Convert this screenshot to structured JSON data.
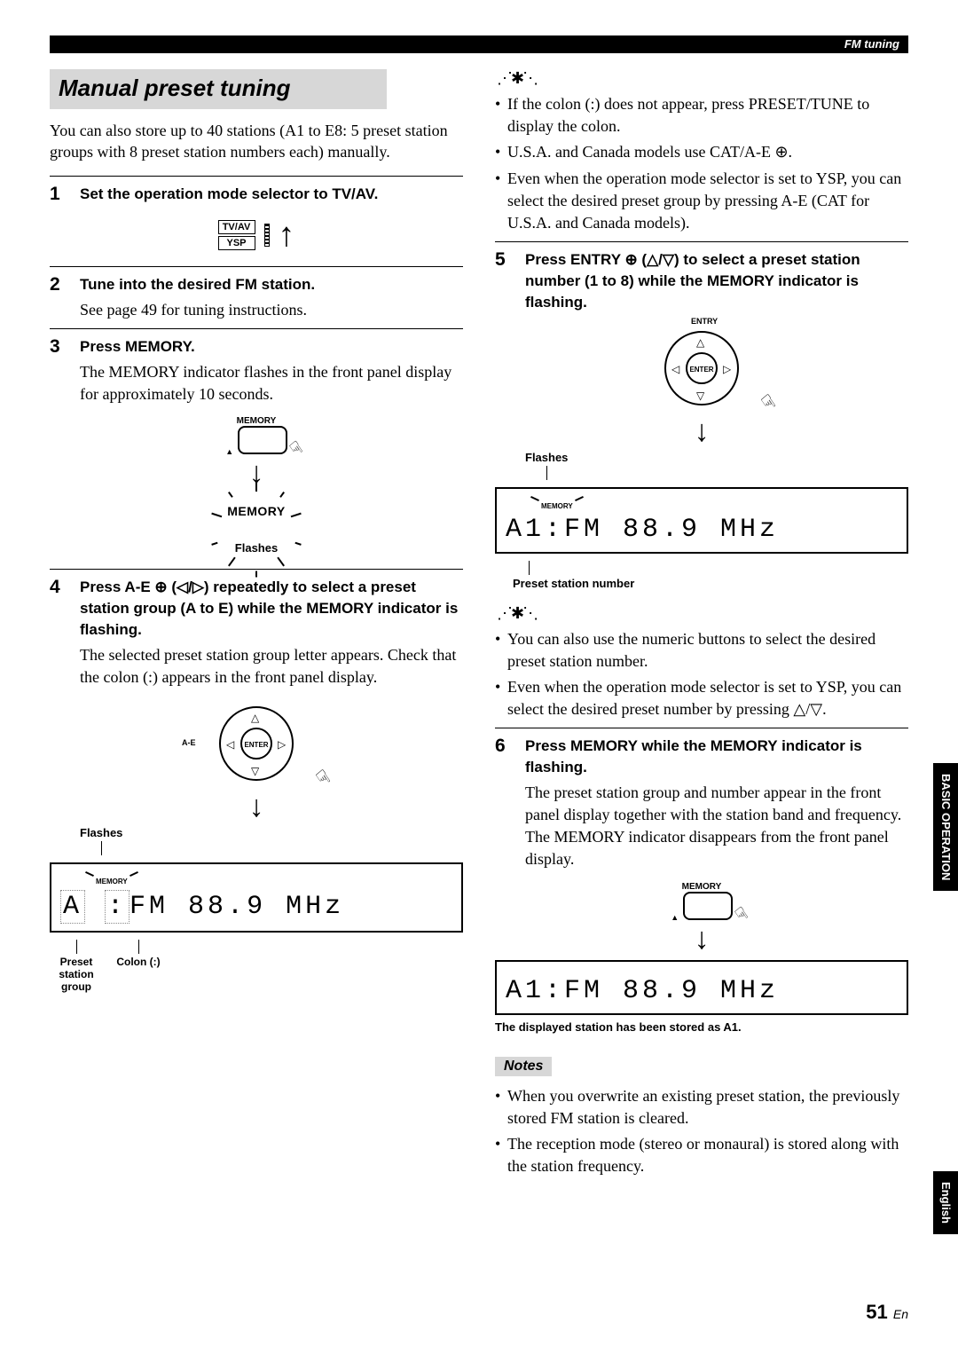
{
  "header_section": "FM tuning",
  "title": "Manual preset tuning",
  "intro": "You can also store up to 40 stations (A1 to E8: 5 preset station groups with 8 preset station numbers each) manually.",
  "side_tabs": {
    "basic": "BASIC OPERATION",
    "english": "English"
  },
  "page_number": "51",
  "page_lang": "En",
  "labels": {
    "flashes": "Flashes",
    "memory_btn": "MEMORY",
    "memory_word": "MEMORY",
    "tvav": "TV/AV",
    "ysp": "YSP",
    "enter": "ENTER",
    "ae_side": "A-E",
    "entry_top": "ENTRY",
    "preset_station_group": "Preset station group",
    "colon": "Colon (:)",
    "preset_station_number": "Preset station number",
    "stored_caption": "The displayed station has been stored as A1.",
    "notes": "Notes"
  },
  "lcd": {
    "step4_prefix": "A",
    "step4_colon": ":",
    "step4_freq": "FM 88.9 MHz",
    "step5_full": "A1:FM 88.9 MHz",
    "step6_full": "A1:FM 88.9 MHz"
  },
  "steps": {
    "s1_head": "Set the operation mode selector to TV/AV.",
    "s2_head": "Tune into the desired FM station.",
    "s2_body": "See page 49 for tuning instructions.",
    "s3_head": "Press MEMORY.",
    "s3_body": "The MEMORY indicator flashes in the front panel display for approximately 10 seconds.",
    "s4_head": "Press A-E ⊕ (◁/▷) repeatedly to select a preset station group (A to E) while the MEMORY indicator is flashing.",
    "s4_body": "The selected preset station group letter appears. Check that the colon (:) appears in the front panel display.",
    "s5_head": "Press ENTRY ⊕ (△/▽) to select a preset station number (1 to 8) while the MEMORY indicator is flashing.",
    "s6_head": "Press MEMORY while the MEMORY indicator is flashing.",
    "s6_body": "The preset station group and number appear in the front panel display together with the station band and frequency. The MEMORY indicator disappears from the front panel display."
  },
  "tips_top": [
    "If the colon (:) does not appear, press PRESET/TUNE to display the colon.",
    "U.S.A. and Canada models use CAT/A-E ⊕.",
    "Even when the operation mode selector is set to YSP, you can select the desired preset group by pressing A-E (CAT for U.S.A. and Canada models)."
  ],
  "tips_mid": [
    "You can also use the numeric buttons to select the desired preset station number.",
    "Even when the operation mode selector is set to YSP, you can select the desired preset number by pressing △/▽."
  ],
  "notes_list": [
    "When you overwrite an existing preset station, the previously stored FM station is cleared.",
    "The reception mode (stereo or monaural) is stored along with the station frequency."
  ]
}
